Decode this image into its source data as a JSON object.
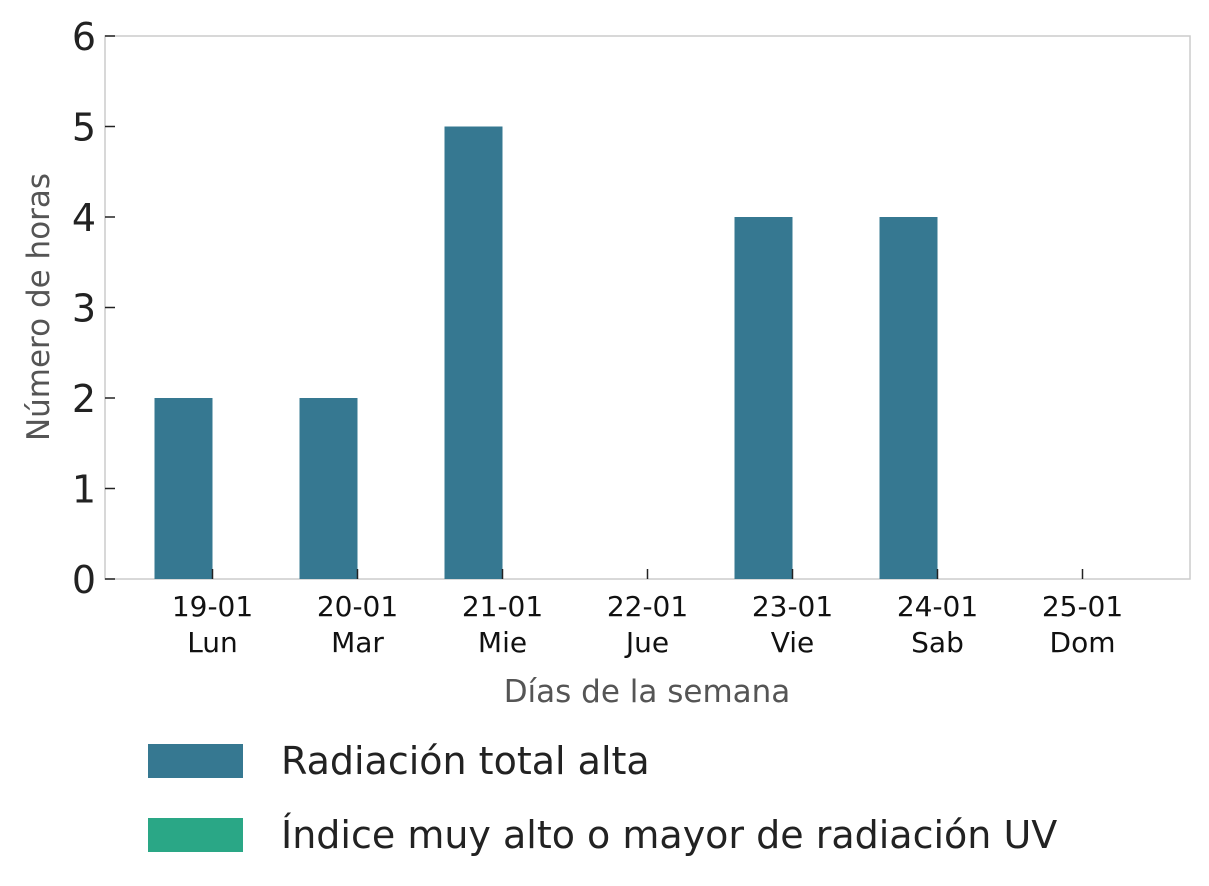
{
  "chart_data": {
    "type": "bar",
    "xlabel": "Días de la semana",
    "ylabel": "Número de horas",
    "ylim": [
      0,
      6
    ],
    "yticks": [
      "0",
      "1",
      "2",
      "3",
      "4",
      "5",
      "6"
    ],
    "categories": [
      {
        "date": "19-01",
        "day": "Lun"
      },
      {
        "date": "20-01",
        "day": "Mar"
      },
      {
        "date": "21-01",
        "day": "Mie"
      },
      {
        "date": "22-01",
        "day": "Jue"
      },
      {
        "date": "23-01",
        "day": "Vie"
      },
      {
        "date": "24-01",
        "day": "Sab"
      },
      {
        "date": "25-01",
        "day": "Dom"
      }
    ],
    "series": [
      {
        "name": "Radiación total alta",
        "color": "#367891",
        "values": [
          2,
          2,
          5,
          0,
          4,
          4,
          0
        ]
      },
      {
        "name": "Índice muy alto o mayor de radiación UV",
        "color": "#2aa786",
        "values": [
          0,
          0,
          0,
          0,
          0,
          0,
          0
        ]
      }
    ],
    "grid": false,
    "legend_position": "bottom-left"
  }
}
